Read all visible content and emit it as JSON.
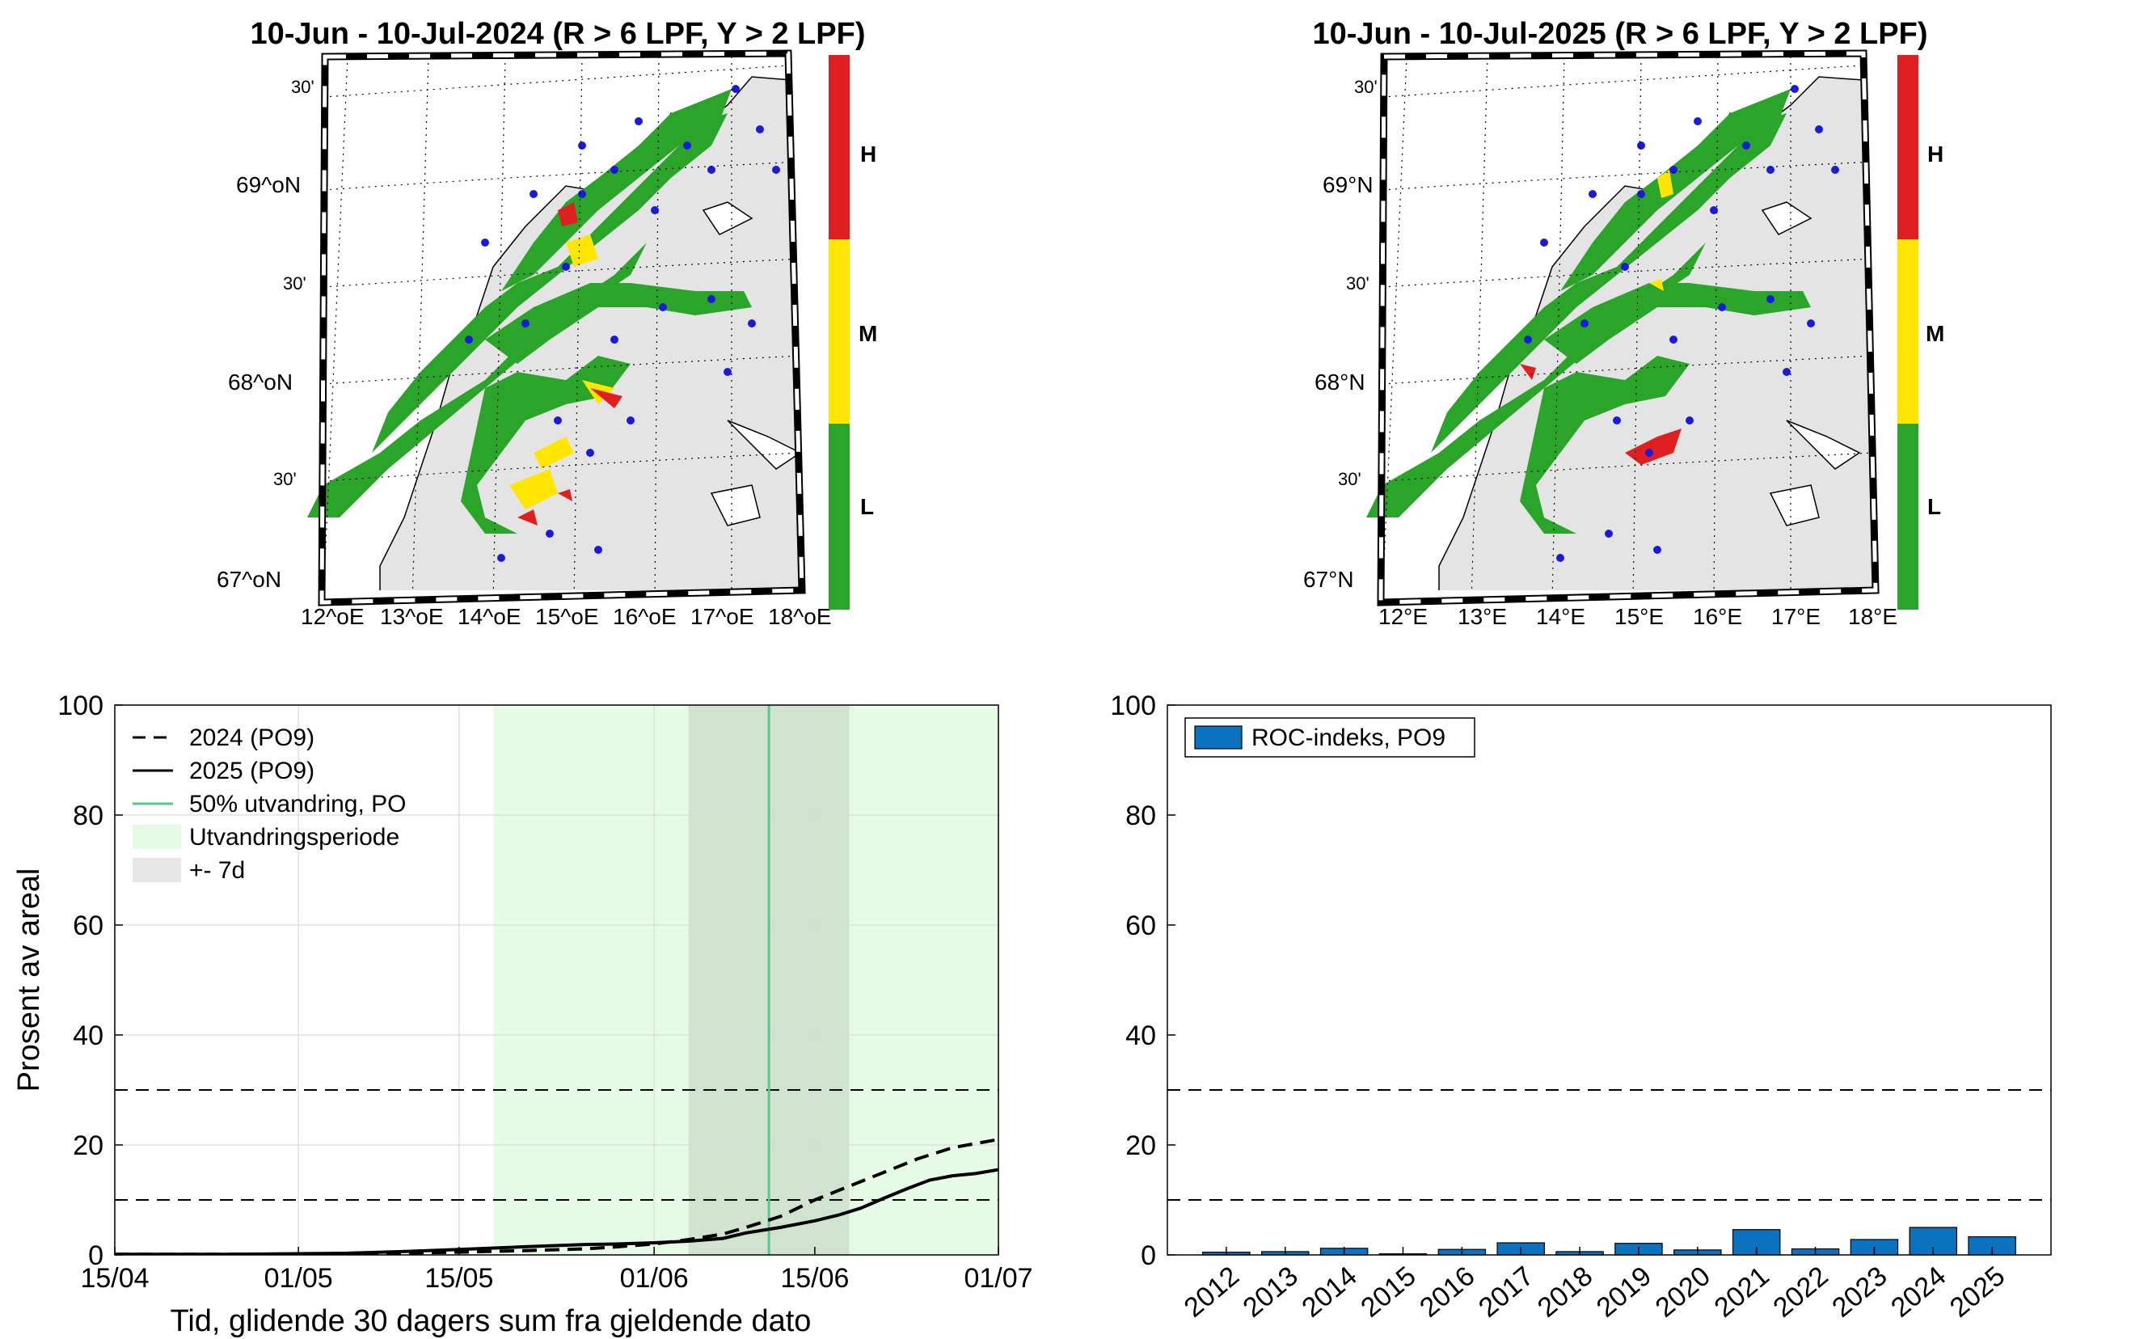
{
  "maps": [
    {
      "title": "10-Jun - 10-Jul-2024  (R > 6 LPF, Y > 2 LPF)",
      "lat_labels": [
        "69^oN",
        "68^oN",
        "67^oN"
      ],
      "minute_labels": [
        "30'",
        "30'",
        "30'"
      ],
      "lon_labels": [
        "12^oE",
        "13^oE",
        "14^oE",
        "15^oE",
        "16^oE",
        "17^oE",
        "18^oE"
      ]
    },
    {
      "title": "10-Jun - 10-Jul-2025  (R > 6 LPF, Y > 2 LPF)",
      "lat_labels": [
        "69°N",
        "68°N",
        "67°N"
      ],
      "minute_labels": [
        "30'",
        "30'",
        "30'"
      ],
      "lon_labels": [
        "12°E",
        "13°E",
        "14°E",
        "15°E",
        "16°E",
        "17°E",
        "18°E"
      ]
    }
  ],
  "colorbar": {
    "labels": [
      "H",
      "M",
      "L"
    ],
    "colors": {
      "H": "#e02020",
      "M": "#ffe600",
      "L": "#2aa52a"
    }
  },
  "chart_data": [
    {
      "type": "line",
      "ylabel": "Prosent av areal",
      "xlabel": "Tid, glidende 30 dagers sum fra gjeldende dato",
      "ylim": [
        0,
        100
      ],
      "yticks": [
        "0",
        "20",
        "40",
        "60",
        "80",
        "100"
      ],
      "xticks": [
        "15/04",
        "01/05",
        "15/05",
        "01/06",
        "15/06",
        "01/07"
      ],
      "x_days": [
        0,
        16,
        30,
        47,
        61,
        77
      ],
      "grid": true,
      "series": [
        {
          "name": "2024 (PO9)",
          "style": "dashed",
          "x": [
            0,
            10,
            20,
            30,
            36,
            41,
            44,
            47,
            50,
            53,
            55,
            58,
            61,
            64,
            67,
            70,
            73,
            77
          ],
          "values": [
            0.1,
            0.1,
            0.2,
            0.5,
            0.8,
            1.1,
            1.5,
            2.0,
            2.8,
            3.8,
            5.0,
            7.0,
            10.0,
            12.5,
            15.0,
            17.5,
            19.5,
            21.0
          ]
        },
        {
          "name": "2025 (PO9)",
          "style": "solid",
          "x": [
            0,
            10,
            20,
            25,
            30,
            36,
            41,
            44,
            47,
            50,
            53,
            55,
            58,
            61,
            63,
            65,
            67,
            69,
            71,
            73,
            75,
            77
          ],
          "values": [
            0.1,
            0.1,
            0.3,
            0.6,
            1.0,
            1.5,
            1.9,
            2.0,
            2.2,
            2.5,
            3.0,
            4.0,
            5.0,
            6.2,
            7.2,
            8.5,
            10.3,
            12.0,
            13.6,
            14.4,
            14.8,
            15.5
          ]
        }
      ],
      "legend": [
        "2024 (PO9)",
        "2025 (PO9)",
        "50% utvandring, PO",
        "Utvandringsperiode",
        "+- 7d"
      ],
      "migration_period_start_day": 33,
      "migration_period_end_day": 77,
      "migration_50pct_day": 57,
      "window_days": 7,
      "reference_lines": [
        10,
        30
      ]
    },
    {
      "type": "bar",
      "legend": [
        "ROC-indeks, PO9"
      ],
      "ylim": [
        0,
        100
      ],
      "yticks": [
        "0",
        "20",
        "40",
        "60",
        "80",
        "100"
      ],
      "categories": [
        "2012",
        "2013",
        "2014",
        "2015",
        "2016",
        "2017",
        "2018",
        "2019",
        "2020",
        "2021",
        "2022",
        "2023",
        "2024",
        "2025"
      ],
      "values": [
        0.5,
        0.6,
        1.2,
        0.2,
        1.0,
        2.2,
        0.6,
        2.1,
        0.9,
        4.6,
        1.1,
        2.8,
        5.0,
        3.3
      ],
      "reference_lines": [
        10,
        30
      ]
    }
  ]
}
